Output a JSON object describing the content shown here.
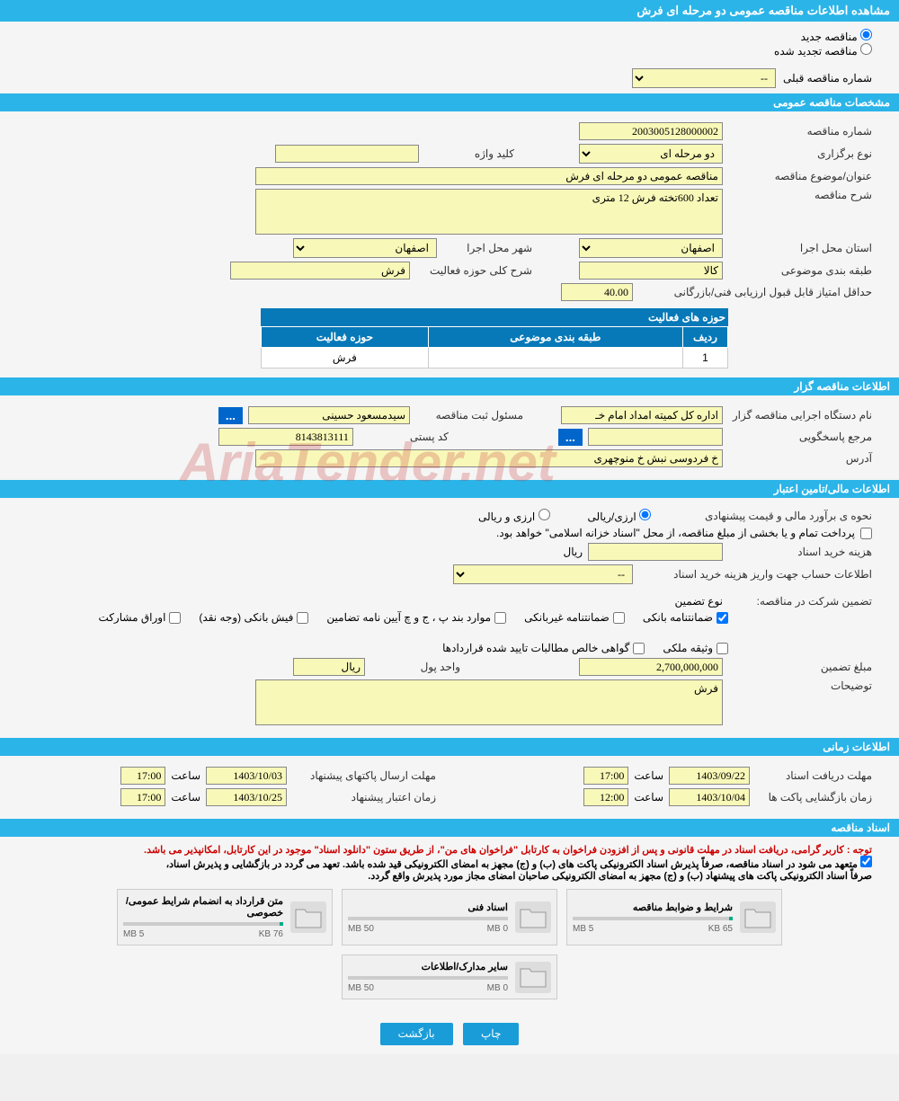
{
  "page_title": "مشاهده اطلاعات مناقصه عمومی دو مرحله ای فرش",
  "tender_mode": {
    "new_label": "مناقصه جدید",
    "renewed_label": "مناقصه تجدید شده",
    "selected": "new"
  },
  "prev_tender": {
    "label": "شماره مناقصه قبلی",
    "value": "--"
  },
  "sections": {
    "general": {
      "header": "مشخصات مناقصه عمومی",
      "tender_number": {
        "label": "شماره مناقصه",
        "value": "2003005128000002"
      },
      "holding_type": {
        "label": "نوع برگزاری",
        "value": "دو مرحله ای"
      },
      "keyword": {
        "label": "کلید واژه",
        "value": ""
      },
      "title": {
        "label": "عنوان/موضوع مناقصه",
        "value": "مناقصه عمومی دو مرحله ای فرش"
      },
      "description": {
        "label": "شرح مناقصه",
        "value": "تعداد 600تخته فرش 12 متری"
      },
      "province": {
        "label": "استان محل اجرا",
        "value": "اصفهان"
      },
      "city": {
        "label": "شهر محل اجرا",
        "value": "اصفهان"
      },
      "subject_class": {
        "label": "طبقه بندی موضوعی",
        "value": "کالا"
      },
      "activity_scope": {
        "label": "شرح کلی حوزه فعالیت",
        "value": "فرش"
      },
      "min_score": {
        "label": "حداقل امتیاز قابل قبول ارزیابی فنی/بازرگانی",
        "value": "40.00"
      },
      "activity_table": {
        "header": "حوزه های فعالیت",
        "cols": {
          "row": "ردیف",
          "subject": "طبقه بندی موضوعی",
          "scope": "حوزه فعالیت"
        },
        "rows": [
          {
            "row": "1",
            "subject": "",
            "scope": "فرش"
          }
        ]
      }
    },
    "tenderer": {
      "header": "اطلاعات مناقصه گزار",
      "org_name": {
        "label": "نام دستگاه اجرایی مناقصه گزار",
        "value": "اداره کل کمیته امداد امام خـ"
      },
      "registrar": {
        "label": "مسئول ثبت مناقصه",
        "value": "سیدمسعود حسینی"
      },
      "response_ref": {
        "label": "مرجع پاسخگویی",
        "value": ""
      },
      "postal_code": {
        "label": "کد پستی",
        "value": "8143813111"
      },
      "address": {
        "label": "آدرس",
        "value": "خ فردوسی نبش خ منوچهری"
      }
    },
    "financial": {
      "header": "اطلاعات مالی/تامین اعتبار",
      "estimate_method": {
        "label": "نحوه ی برآورد مالی و قیمت پیشنهادی",
        "options": {
          "fx": "ارزی/ریالی",
          "rial": "ارزی و ریالی"
        }
      },
      "treasury_note": "پرداخت تمام و یا بخشی از مبلغ مناقصه، از محل \"اسناد خزانه اسلامی\" خواهد بود.",
      "doc_fee": {
        "label": "هزینه خرید اسناد",
        "value": "",
        "unit": "ریال"
      },
      "account_info": {
        "label": "اطلاعات حساب جهت واریز هزینه خرید اسناد",
        "value": "--"
      },
      "guarantee": {
        "label": "تضمین شرکت در مناقصه:",
        "type_label": "نوع تضمین",
        "options": [
          {
            "label": "ضمانتنامه بانکی",
            "checked": true
          },
          {
            "label": "ضمانتنامه غیربانکی",
            "checked": false
          },
          {
            "label": "موارد بند پ ، ج و چ آیین نامه تضامین",
            "checked": false
          },
          {
            "label": "فیش بانکی (وجه نقد)",
            "checked": false
          },
          {
            "label": "اوراق مشارکت",
            "checked": false
          },
          {
            "label": "وثیقه ملکی",
            "checked": false
          },
          {
            "label": "گواهی خالص مطالبات تایید شده قراردادها",
            "checked": false
          }
        ]
      },
      "guarantee_amount": {
        "label": "مبلغ تضمین",
        "value": "2,700,000,000",
        "unit_label": "واحد پول",
        "unit": "ریال"
      },
      "notes": {
        "label": "توضیحات",
        "value": "فرش"
      }
    },
    "timing": {
      "header": "اطلاعات زمانی",
      "receive_deadline": {
        "label": "مهلت دریافت اسناد",
        "date": "1403/09/22",
        "time_label": "ساعت",
        "time": "17:00"
      },
      "submit_deadline": {
        "label": "مهلت ارسال پاکتهای پیشنهاد",
        "date": "1403/10/03",
        "time_label": "ساعت",
        "time": "17:00"
      },
      "opening": {
        "label": "زمان بازگشایی پاکت ها",
        "date": "1403/10/04",
        "time_label": "ساعت",
        "time": "12:00"
      },
      "validity": {
        "label": "زمان اعتبار پیشنهاد",
        "date": "1403/10/25",
        "time_label": "ساعت",
        "time": "17:00"
      }
    },
    "documents": {
      "header": "اسناد مناقصه",
      "note_red": "توجه : کاربر گرامی، دریافت اسناد در مهلت قانونی و پس از افزودن فراخوان به کارتابل \"فراخوان های من\"، از طریق ستون \"دانلود اسناد\" موجود در این کارتابل، امکانپذیر می باشد.",
      "note_black1": "متعهد می شود در اسناد مناقصه، صرفاً پذیرش اسناد الکترونیکی پاکت های (ب) و (ج) مجهز به امضای الکترونیکی قید شده باشد. تعهد می گردد در بازگشایی و پذیرش اسناد،",
      "note_black2": "صرفاً اسناد الکترونیکی پاکت های پیشنهاد (ب) و (ج) مجهز به امضای الکترونیکی صاحبان امضای مجاز مورد پذیرش واقع گردد.",
      "files": [
        {
          "title": "شرایط و ضوابط مناقصه",
          "used": "65 KB",
          "total": "5 MB",
          "pct": 2
        },
        {
          "title": "اسناد فنی",
          "used": "0 MB",
          "total": "50 MB",
          "pct": 0
        },
        {
          "title": "متن قرارداد به انضمام شرایط عمومی/خصوصی",
          "used": "76 KB",
          "total": "5 MB",
          "pct": 2
        },
        {
          "title": "سایر مدارک/اطلاعات",
          "used": "0 MB",
          "total": "50 MB",
          "pct": 0
        }
      ]
    }
  },
  "buttons": {
    "print": "چاپ",
    "back": "بازگشت",
    "ellipsis": "..."
  },
  "watermark": "AriaTender.net",
  "colors": {
    "header_bg": "#2bb4e8",
    "header_text": "#ffffff",
    "input_bg": "#f8f8b8",
    "table_header_bg": "#0779b8",
    "button_bg": "#1a9cd8",
    "note_red": "#cc0000"
  }
}
